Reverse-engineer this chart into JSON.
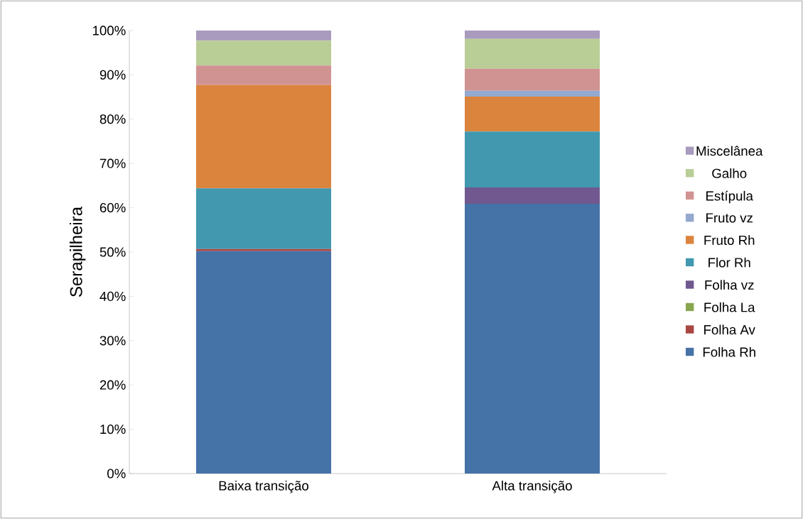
{
  "chart_data": {
    "type": "bar",
    "stacked": true,
    "ylabel": "Serapilheira",
    "categories": [
      "Baixa transição",
      "Alta transição"
    ],
    "series": [
      {
        "name": "Folha Rh",
        "color": "#4572a7",
        "values": [
          50.2,
          60.9
        ]
      },
      {
        "name": "Folha Av",
        "color": "#aa4643",
        "values": [
          0.5,
          0
        ]
      },
      {
        "name": "Folha La",
        "color": "#89a54e",
        "values": [
          0,
          0
        ]
      },
      {
        "name": "Folha vz",
        "color": "#71588f",
        "values": [
          0,
          3.7
        ]
      },
      {
        "name": "Flor Rh",
        "color": "#4198af",
        "values": [
          13.7,
          12.6
        ]
      },
      {
        "name": "Fruto Rh",
        "color": "#db843d",
        "values": [
          23.3,
          7.9
        ]
      },
      {
        "name": "Fruto vz",
        "color": "#93a9cf",
        "values": [
          0,
          1.3
        ]
      },
      {
        "name": "Estípula",
        "color": "#d19392",
        "values": [
          4.4,
          5.0
        ]
      },
      {
        "name": "Galho",
        "color": "#b9cd96",
        "values": [
          5.6,
          6.7
        ]
      },
      {
        "name": "Miscelânea",
        "color": "#a99bbd",
        "values": [
          2.3,
          1.9
        ]
      }
    ],
    "ylim": [
      0,
      100
    ],
    "yticks": [
      {
        "value": 0,
        "label": "0%"
      },
      {
        "value": 10,
        "label": "10%"
      },
      {
        "value": 20,
        "label": "20%"
      },
      {
        "value": 30,
        "label": "30%"
      },
      {
        "value": 40,
        "label": "40%"
      },
      {
        "value": 50,
        "label": "50%"
      },
      {
        "value": 60,
        "label": "60%"
      },
      {
        "value": 70,
        "label": "70%"
      },
      {
        "value": 80,
        "label": "80%"
      },
      {
        "value": 90,
        "label": "90%"
      },
      {
        "value": 100,
        "label": "100%"
      }
    ],
    "legend": "right"
  }
}
